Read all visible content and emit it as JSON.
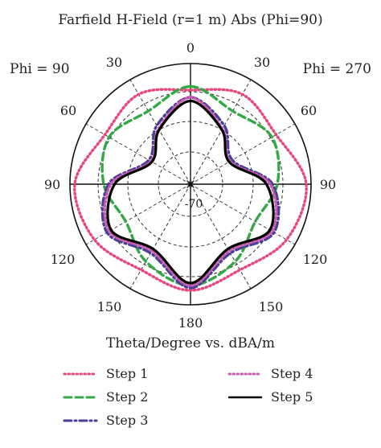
{
  "chart_data": {
    "type": "polar-line",
    "title": "Farfield H-Field (r=1 m) Abs (Phi=90)",
    "xlabel": "Theta/Degree vs. dBA/m",
    "left_phi_label": "Phi = 90",
    "right_phi_label": "Phi = 270",
    "angle_tick_labels": {
      "top": "0",
      "upper_left": "30",
      "upper_right": "30",
      "mid_upper_left": "60",
      "mid_upper_right": "60",
      "left": "90",
      "right": "90",
      "mid_lower_left": "120",
      "mid_lower_right": "120",
      "lower_left": "150",
      "lower_right": "150",
      "bottom": "180"
    },
    "radial_label": "-70",
    "angles_deg": [
      0,
      30,
      60,
      90,
      120,
      150,
      180,
      210,
      240,
      270,
      300,
      330
    ],
    "series": [
      {
        "name": "Step 1",
        "color": "#e8457a",
        "dash": "dotted",
        "r": [
          0.78,
          0.86,
          0.82,
          0.96,
          0.92,
          0.82,
          0.88,
          0.82,
          0.92,
          0.96,
          0.82,
          0.86
        ]
      },
      {
        "name": "Step 2",
        "color": "#33a845",
        "dash": "dashed",
        "r": [
          0.81,
          0.7,
          0.78,
          0.72,
          0.62,
          0.74,
          0.84,
          0.74,
          0.62,
          0.72,
          0.78,
          0.7
        ]
      },
      {
        "name": "Step 3",
        "color": "#4a3e96",
        "dash": "dashdot",
        "r": [
          0.72,
          0.56,
          0.4,
          0.68,
          0.8,
          0.66,
          0.86,
          0.66,
          0.8,
          0.68,
          0.4,
          0.56
        ]
      },
      {
        "name": "Step 4",
        "color": "#c95ab0",
        "dash": "dotted",
        "r": [
          0.72,
          0.53,
          0.38,
          0.66,
          0.78,
          0.64,
          0.84,
          0.64,
          0.78,
          0.66,
          0.38,
          0.53
        ]
      },
      {
        "name": "Step 5",
        "color": "#000000",
        "dash": "solid",
        "r": [
          0.69,
          0.52,
          0.37,
          0.63,
          0.76,
          0.62,
          0.82,
          0.62,
          0.76,
          0.63,
          0.37,
          0.52
        ]
      }
    ]
  }
}
